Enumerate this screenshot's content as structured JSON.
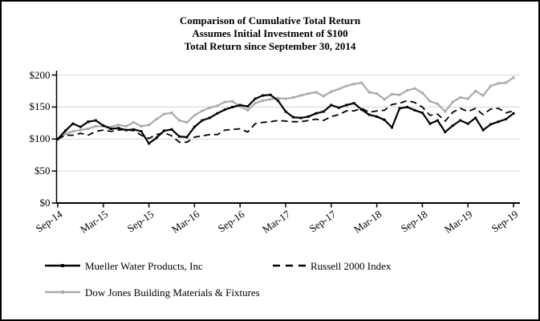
{
  "title": {
    "line1": "Comparison of Cumulative Total Return",
    "line2": "Assumes Initial Investment of $100",
    "line3": "Total Return since September 30, 2014"
  },
  "colors": {
    "black_series": "#000000",
    "gray_series": "#a9a9a9",
    "gridline": "#dcdcdc",
    "axis": "#000000",
    "background": "#ffffff"
  },
  "chart_data": {
    "type": "line",
    "title": "Comparison of Cumulative Total Return",
    "subtitle1": "Assumes Initial Investment of $100",
    "subtitle2": "Total Return since September 30, 2014",
    "grid": true,
    "legend_position": "bottom",
    "ylim": [
      0,
      200
    ],
    "ytick_values": [
      0,
      50,
      100,
      150,
      200
    ],
    "ytick_labels": [
      "$0",
      "$50",
      "$100",
      "$150",
      "$200"
    ],
    "x_tick_labels": [
      "Sep-14",
      "Mar-15",
      "Sep-15",
      "Mar-16",
      "Sep-16",
      "Mar-17",
      "Sep-17",
      "Mar-18",
      "Sep-18",
      "Mar-19",
      "Sep-19"
    ],
    "x": [
      "Sep-14",
      "Oct-14",
      "Nov-14",
      "Dec-14",
      "Jan-15",
      "Feb-15",
      "Mar-15",
      "Apr-15",
      "May-15",
      "Jun-15",
      "Jul-15",
      "Aug-15",
      "Sep-15",
      "Oct-15",
      "Nov-15",
      "Dec-15",
      "Jan-16",
      "Feb-16",
      "Mar-16",
      "Apr-16",
      "May-16",
      "Jun-16",
      "Jul-16",
      "Aug-16",
      "Sep-16",
      "Oct-16",
      "Nov-16",
      "Dec-16",
      "Jan-17",
      "Feb-17",
      "Mar-17",
      "Apr-17",
      "May-17",
      "Jun-17",
      "Jul-17",
      "Aug-17",
      "Sep-17",
      "Oct-17",
      "Nov-17",
      "Dec-17",
      "Jan-18",
      "Feb-18",
      "Mar-18",
      "Apr-18",
      "May-18",
      "Jun-18",
      "Jul-18",
      "Aug-18",
      "Sep-18",
      "Oct-18",
      "Nov-18",
      "Dec-18",
      "Jan-19",
      "Feb-19",
      "Mar-19",
      "Apr-19",
      "May-19",
      "Jun-19",
      "Jul-19",
      "Aug-19",
      "Sep-19"
    ],
    "series": [
      {
        "name": "Mueller Water Products, Inc",
        "color": "#000000",
        "style": "solid",
        "marker": true,
        "line_width": 2.2,
        "values": [
          100,
          113,
          124,
          119,
          127,
          129,
          121,
          116,
          117,
          114,
          115,
          112,
          93,
          102,
          113,
          115,
          104,
          103,
          119,
          129,
          133,
          140,
          146,
          150,
          153,
          151,
          163,
          168,
          169,
          160,
          143,
          134,
          133,
          135,
          140,
          143,
          153,
          149,
          153,
          156,
          146,
          138,
          135,
          130,
          118,
          148,
          150,
          145,
          141,
          124,
          129,
          111,
          121,
          129,
          124,
          133,
          114,
          123,
          127,
          131,
          140
        ]
      },
      {
        "name": "Russell 2000 Index",
        "color": "#000000",
        "style": "dashed",
        "marker": false,
        "line_width": 1.8,
        "values": [
          100,
          106,
          106,
          109,
          106,
          112,
          114,
          112,
          114,
          115,
          113,
          106,
          101,
          107,
          110,
          105,
          95,
          95,
          103,
          105,
          107,
          107,
          114,
          115,
          116,
          111,
          124,
          126,
          127,
          129,
          128,
          127,
          127,
          129,
          131,
          129,
          135,
          138,
          144,
          144,
          148,
          142,
          144,
          145,
          154,
          156,
          160,
          157,
          150,
          137,
          139,
          128,
          142,
          148,
          143,
          148,
          138,
          147,
          148,
          141,
          144
        ]
      },
      {
        "name": "Dow Jones Building Materials & Fixtures",
        "color": "#a9a9a9",
        "style": "solid",
        "marker": true,
        "line_width": 2.2,
        "values": [
          100,
          108,
          112,
          114,
          116,
          120,
          120,
          119,
          122,
          120,
          126,
          120,
          122,
          131,
          139,
          141,
          129,
          126,
          137,
          144,
          149,
          152,
          158,
          159,
          151,
          145,
          156,
          160,
          162,
          164,
          163,
          165,
          168,
          171,
          173,
          167,
          174,
          178,
          183,
          186,
          188,
          173,
          171,
          162,
          170,
          169,
          176,
          179,
          172,
          159,
          155,
          143,
          158,
          165,
          163,
          175,
          168,
          183,
          187,
          188,
          196
        ]
      }
    ]
  }
}
